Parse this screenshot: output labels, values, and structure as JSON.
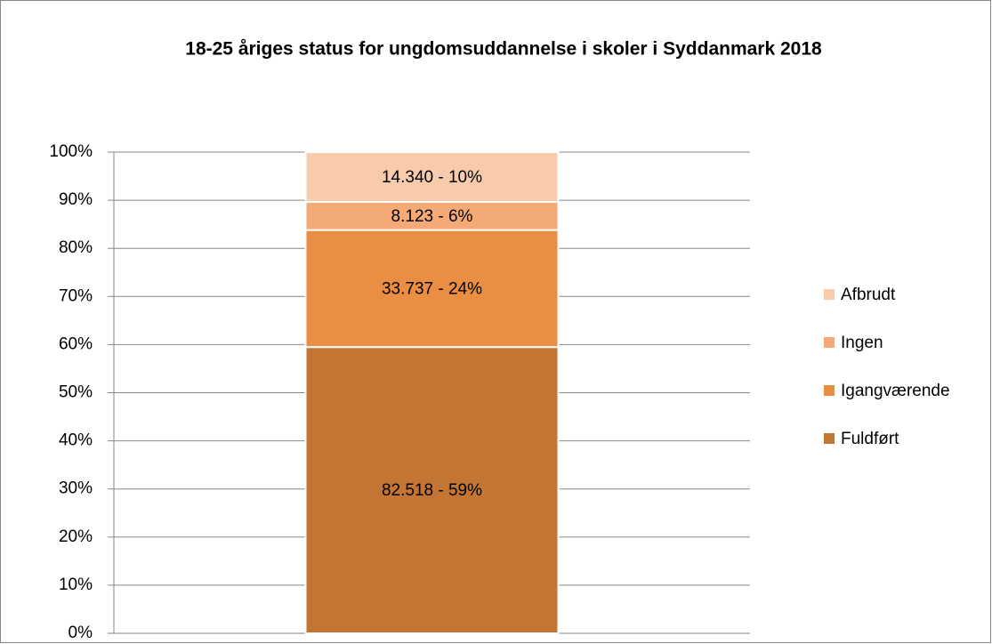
{
  "chart_data": {
    "type": "bar",
    "stacked": true,
    "title": "18-25 åriges status for ungdomsuddannelse i skoler i Syddanmark 2018",
    "categories": [
      null
    ],
    "series": [
      {
        "name": "Fuldført",
        "color": "#c37533",
        "values": [
          59.49
        ],
        "value_labels": [
          "82.518  - 59%"
        ]
      },
      {
        "name": "Igangværende",
        "color": "#e98e42",
        "values": [
          24.32
        ],
        "value_labels": [
          "33.737 - 24%"
        ]
      },
      {
        "name": "Ingen",
        "color": "#f4aa76",
        "values": [
          5.86
        ],
        "value_labels": [
          "8.123 - 6%"
        ]
      },
      {
        "name": "Afbrudt",
        "color": "#f8cbad",
        "values": [
          10.34
        ],
        "value_labels": [
          "14.340 - 10%"
        ]
      }
    ],
    "ylim": [
      0,
      100
    ],
    "yticks": [
      {
        "value": 0,
        "label": "0%"
      },
      {
        "value": 10,
        "label": "10%"
      },
      {
        "value": 20,
        "label": "20%"
      },
      {
        "value": 30,
        "label": "30%"
      },
      {
        "value": 40,
        "label": "40%"
      },
      {
        "value": 50,
        "label": "50%"
      },
      {
        "value": 60,
        "label": "60%"
      },
      {
        "value": 70,
        "label": "70%"
      },
      {
        "value": 80,
        "label": "80%"
      },
      {
        "value": 90,
        "label": "90%"
      },
      {
        "value": 100,
        "label": "100%"
      }
    ],
    "grid": true,
    "legend": "right"
  }
}
